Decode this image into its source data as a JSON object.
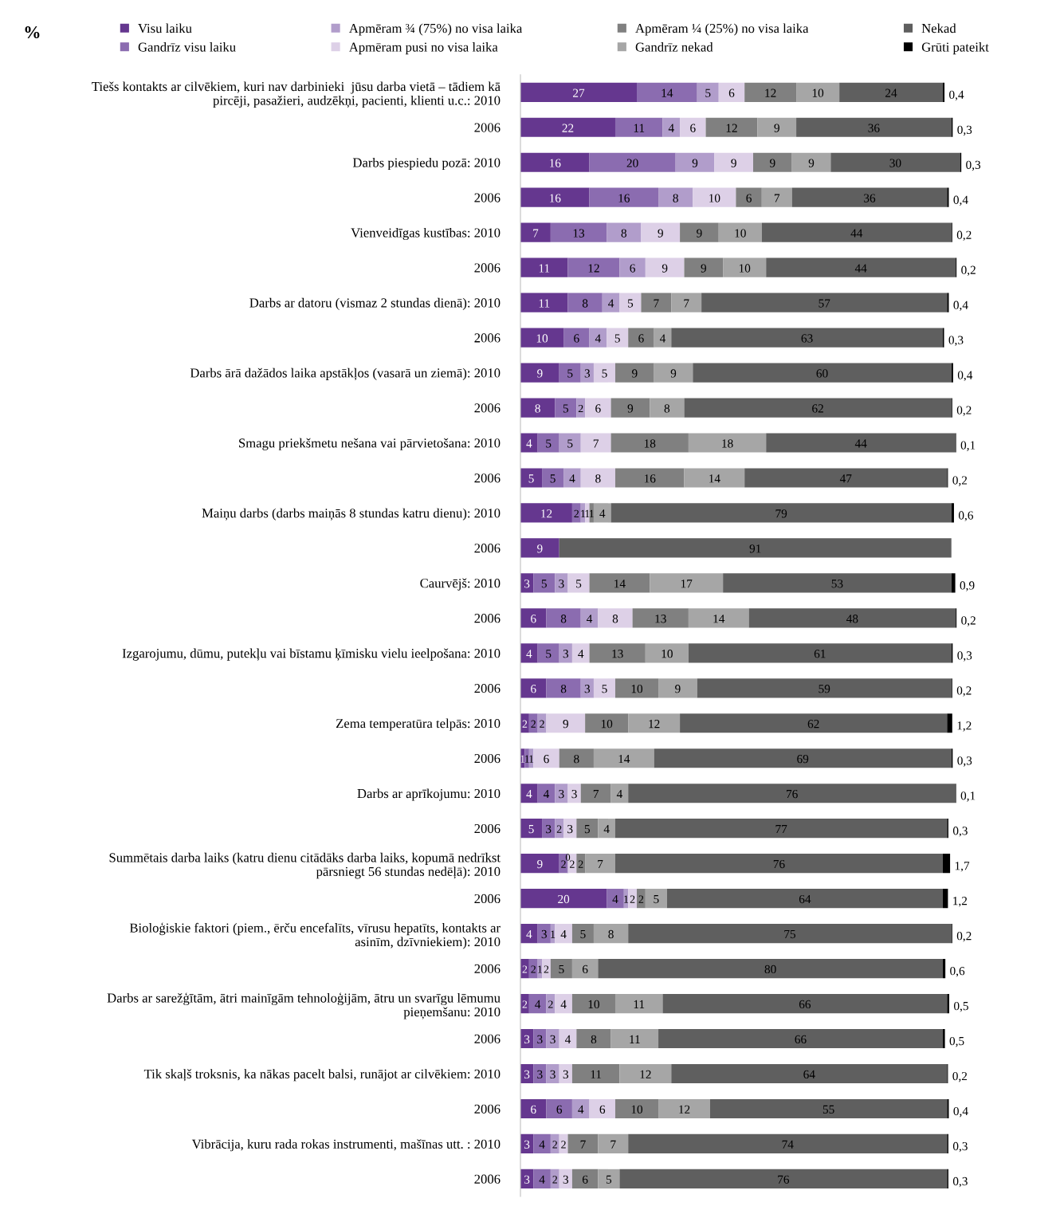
{
  "chart_data": {
    "type": "bar",
    "orientation": "horizontal",
    "stacked": true,
    "data_labels": true,
    "legend": "top",
    "grid": false,
    "tick_labels": "y",
    "annotations": [
      "%"
    ],
    "categories": [
      "Tiešs kontakts ar cilvēkiem, kuri nav darbinieki  jūsu darba vietā – tādiem kā pircēji, pasažieri, audzēkņi, pacienti, klienti u.c.: 2010",
      "2006",
      "Darbs piespiedu pozā: 2010",
      "2006",
      "Vienveidīgas kustības: 2010",
      "2006",
      "Darbs ar datoru (vismaz 2 stundas dienā): 2010",
      "2006",
      "Darbs ārā dažādos laika apstākļos (vasarā un ziemā): 2010",
      "2006",
      "Smagu priekšmetu nešana vai pārvietošana: 2010",
      "2006",
      "Maiņu darbs (darbs maiņās 8 stundas katru dienu): 2010",
      "2006",
      "Caurvējš: 2010",
      "2006",
      "Izgarojumu, dūmu, putekļu vai bīstamu ķīmisku vielu ieelpošana: 2010",
      "2006",
      "Zema temperatūra telpās: 2010",
      "2006",
      "Darbs ar aprīkojumu: 2010",
      "2006",
      "Summētais darba laiks (katru dienu citādāks darba laiks, kopumā nedrīkst pārsniegt 56 stundas nedēļā): 2010",
      "2006",
      "Bioloģiskie faktori (piem., ērču encefalīts, vīrusu hepatīts, kontakts ar asinīm, dzīvniekiem): 2010",
      "2006",
      "Darbs ar sarežģītām, ātri mainīgām tehnoloģijām, ātru un svarīgu lēmumu pieņemšanu: 2010",
      "2006",
      "Tik skaļš troksnis, ka nākas pacelt balsi, runājot ar cilvēkiem: 2010",
      "2006",
      "Vibrācija, kuru rada rokas instrumenti, mašīnas utt. : 2010",
      "2006"
    ],
    "series": [
      {
        "name": "Visu laiku",
        "color": "#65378f",
        "values": [
          27,
          22,
          16,
          16,
          7,
          11,
          11,
          10,
          9,
          8,
          4,
          5,
          12,
          9,
          3,
          6,
          4,
          6,
          2,
          1,
          4,
          5,
          9,
          20,
          4,
          2,
          2,
          3,
          3,
          6,
          3,
          3
        ]
      },
      {
        "name": "Gandrīz visu laiku",
        "color": "#8b6cb0",
        "values": [
          14,
          11,
          20,
          16,
          13,
          12,
          8,
          6,
          5,
          5,
          5,
          5,
          2,
          null,
          5,
          8,
          5,
          8,
          2,
          1,
          4,
          3,
          2,
          4,
          3,
          2,
          4,
          3,
          3,
          6,
          4,
          4
        ]
      },
      {
        "name": "Apmēram ¾ (75%) no visa laika",
        "color": "#b19dcb",
        "values": [
          5,
          4,
          9,
          8,
          8,
          6,
          4,
          4,
          3,
          2,
          5,
          4,
          1,
          null,
          3,
          4,
          3,
          3,
          2,
          1,
          3,
          2,
          0,
          1,
          1,
          1,
          2,
          3,
          3,
          4,
          2,
          2
        ]
      },
      {
        "name": "Apmēram pusi no visa laika",
        "color": "#ddd0e7",
        "values": [
          6,
          6,
          9,
          10,
          9,
          9,
          5,
          5,
          5,
          6,
          7,
          8,
          1,
          null,
          5,
          8,
          4,
          5,
          9,
          6,
          3,
          3,
          2,
          2,
          4,
          2,
          4,
          4,
          3,
          6,
          2,
          3
        ]
      },
      {
        "name": "Apmēram ¼ (25%) no visa laika",
        "color": "#808080",
        "values": [
          12,
          12,
          9,
          6,
          9,
          9,
          7,
          6,
          9,
          9,
          18,
          16,
          1,
          null,
          14,
          13,
          13,
          10,
          10,
          8,
          7,
          5,
          2,
          2,
          5,
          5,
          10,
          8,
          11,
          10,
          7,
          6
        ]
      },
      {
        "name": "Gandrīz nekad",
        "color": "#a6a6a6",
        "values": [
          10,
          9,
          9,
          7,
          10,
          10,
          7,
          4,
          9,
          8,
          18,
          14,
          4,
          null,
          17,
          14,
          10,
          9,
          12,
          14,
          4,
          4,
          7,
          5,
          8,
          6,
          11,
          11,
          12,
          12,
          7,
          5
        ]
      },
      {
        "name": "Nekad",
        "color": "#5f5f5f",
        "values": [
          24,
          36,
          30,
          36,
          44,
          44,
          57,
          63,
          60,
          62,
          44,
          47,
          79,
          91,
          53,
          48,
          61,
          59,
          62,
          69,
          76,
          77,
          76,
          64,
          75,
          80,
          66,
          66,
          64,
          55,
          74,
          76
        ]
      },
      {
        "name": "Grūti pateikt",
        "color": "#000000",
        "values": [
          0.4,
          0.3,
          0.3,
          0.4,
          0.2,
          0.2,
          0.4,
          0.3,
          0.4,
          0.2,
          0.1,
          0.2,
          0.6,
          null,
          0.9,
          0.2,
          0.3,
          0.2,
          1.2,
          0.3,
          0.1,
          0.3,
          1.7,
          1.2,
          0.2,
          0.6,
          0.5,
          0.5,
          0.2,
          0.4,
          0.3,
          0.3
        ],
        "value_labels": [
          "0,4",
          "0,3",
          "0,3",
          "0,4",
          "0,2",
          "0,2",
          "0,4",
          "0,3",
          "0,4",
          "0,2",
          "0,1",
          "0,2",
          "0,6",
          null,
          "0,9",
          "0,2",
          "0,3",
          "0,2",
          "1,2",
          "0,3",
          "0,1",
          "0,3",
          "1,7",
          "1,2",
          "0,2",
          "0,6",
          "0,5",
          "0,5",
          "0,2",
          "0,4",
          "0,3",
          "0,3"
        ]
      }
    ]
  }
}
